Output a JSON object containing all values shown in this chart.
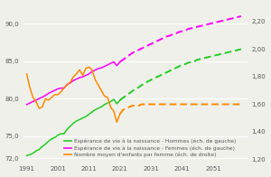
{
  "title": "",
  "left_ylim": [
    71.5,
    92.5
  ],
  "right_ylim": [
    1.18,
    2.32
  ],
  "left_yticks": [
    72.0,
    75.0,
    80.0,
    85.0,
    90.0
  ],
  "right_yticks": [
    1.2,
    1.4,
    1.6,
    1.8,
    2.0,
    2.2
  ],
  "left_ytick_labels": [
    "72,0",
    "75,0",
    "80,0",
    "85,0",
    "90,0"
  ],
  "right_ytick_labels": [
    "1,20",
    "1,40",
    "1,60",
    "1,80",
    "2,00",
    "2,20"
  ],
  "xlim": [
    1990,
    2062
  ],
  "xticks": [
    1991,
    2001,
    2011,
    2021,
    2031,
    2041,
    2051
  ],
  "xtick_labels": [
    "1991",
    "2001",
    "2011",
    "2021",
    "2031",
    "2041",
    "2051"
  ],
  "color_men": "#22cc22",
  "color_women": "#ff00ff",
  "color_children": "#ff8800",
  "men_life_solid": {
    "years": [
      1991,
      1992,
      1993,
      1994,
      1995,
      1996,
      1997,
      1998,
      1999,
      2000,
      2001,
      2002,
      2003,
      2004,
      2005,
      2006,
      2007,
      2008,
      2009,
      2010,
      2011,
      2012,
      2013,
      2014,
      2015,
      2016,
      2017,
      2018,
      2019,
      2020,
      2021
    ],
    "values": [
      72.4,
      72.5,
      72.7,
      73.0,
      73.2,
      73.6,
      73.9,
      74.3,
      74.6,
      74.8,
      75.1,
      75.3,
      75.3,
      75.9,
      76.3,
      76.7,
      77.0,
      77.2,
      77.4,
      77.6,
      77.9,
      78.2,
      78.5,
      78.7,
      78.9,
      79.2,
      79.4,
      79.6,
      79.9,
      79.3,
      79.8
    ]
  },
  "men_life_dashed": {
    "years": [
      2021,
      2022,
      2023,
      2024,
      2025,
      2026,
      2027,
      2028,
      2029,
      2030,
      2031,
      2032,
      2033,
      2034,
      2035,
      2036,
      2037,
      2038,
      2039,
      2040,
      2041,
      2042,
      2043,
      2044,
      2045,
      2046,
      2047,
      2048,
      2049,
      2050,
      2051,
      2052,
      2053,
      2054,
      2055,
      2056,
      2057,
      2058,
      2059,
      2060
    ],
    "values": [
      79.8,
      80.1,
      80.4,
      80.7,
      81.0,
      81.3,
      81.5,
      81.8,
      82.0,
      82.3,
      82.5,
      82.7,
      82.9,
      83.1,
      83.3,
      83.5,
      83.7,
      83.9,
      84.1,
      84.3,
      84.5,
      84.6,
      84.8,
      84.9,
      85.0,
      85.2,
      85.3,
      85.4,
      85.5,
      85.6,
      85.7,
      85.8,
      85.9,
      86.0,
      86.1,
      86.2,
      86.3,
      86.4,
      86.5,
      86.6
    ]
  },
  "women_life_solid": {
    "years": [
      1991,
      1992,
      1993,
      1994,
      1995,
      1996,
      1997,
      1998,
      1999,
      2000,
      2001,
      2002,
      2003,
      2004,
      2005,
      2006,
      2007,
      2008,
      2009,
      2010,
      2011,
      2012,
      2013,
      2014,
      2015,
      2016,
      2017,
      2018,
      2019,
      2020,
      2021
    ],
    "values": [
      79.2,
      79.4,
      79.6,
      79.8,
      80.0,
      80.2,
      80.4,
      80.7,
      80.9,
      81.1,
      81.3,
      81.4,
      81.4,
      81.9,
      82.1,
      82.4,
      82.6,
      82.8,
      82.9,
      83.1,
      83.3,
      83.6,
      83.8,
      84.0,
      84.1,
      84.3,
      84.5,
      84.7,
      84.9,
      84.4,
      84.9
    ]
  },
  "women_life_dashed": {
    "years": [
      2021,
      2022,
      2023,
      2024,
      2025,
      2026,
      2027,
      2028,
      2029,
      2030,
      2031,
      2032,
      2033,
      2034,
      2035,
      2036,
      2037,
      2038,
      2039,
      2040,
      2041,
      2042,
      2043,
      2044,
      2045,
      2046,
      2047,
      2048,
      2049,
      2050,
      2051,
      2052,
      2053,
      2054,
      2055,
      2056,
      2057,
      2058,
      2059,
      2060
    ],
    "values": [
      84.9,
      85.2,
      85.5,
      85.8,
      86.1,
      86.3,
      86.5,
      86.7,
      86.9,
      87.1,
      87.3,
      87.5,
      87.7,
      87.9,
      88.1,
      88.3,
      88.4,
      88.6,
      88.7,
      88.9,
      89.0,
      89.1,
      89.3,
      89.4,
      89.5,
      89.6,
      89.7,
      89.8,
      89.9,
      90.0,
      90.1,
      90.2,
      90.3,
      90.4,
      90.5,
      90.6,
      90.7,
      90.8,
      90.9,
      91.0
    ]
  },
  "children_solid": {
    "years": [
      1991,
      1992,
      1993,
      1994,
      1995,
      1996,
      1997,
      1998,
      1999,
      2000,
      2001,
      2002,
      2003,
      2004,
      2005,
      2006,
      2007,
      2008,
      2009,
      2010,
      2011,
      2012,
      2013,
      2014,
      2015,
      2016,
      2017,
      2018,
      2019,
      2020,
      2021
    ],
    "values": [
      1.82,
      1.72,
      1.65,
      1.62,
      1.57,
      1.58,
      1.64,
      1.63,
      1.65,
      1.67,
      1.67,
      1.69,
      1.72,
      1.74,
      1.76,
      1.8,
      1.82,
      1.85,
      1.81,
      1.86,
      1.87,
      1.85,
      1.78,
      1.74,
      1.7,
      1.66,
      1.65,
      1.58,
      1.55,
      1.47,
      1.53
    ]
  },
  "children_dashed": {
    "years": [
      2021,
      2022,
      2023,
      2024,
      2025,
      2026,
      2027,
      2028,
      2029,
      2030,
      2031,
      2032,
      2033,
      2034,
      2035,
      2036,
      2037,
      2038,
      2039,
      2040,
      2041,
      2042,
      2043,
      2044,
      2045,
      2046,
      2047,
      2048,
      2049,
      2050,
      2051,
      2052,
      2053,
      2054,
      2055,
      2056,
      2057,
      2058,
      2059,
      2060
    ],
    "values": [
      1.53,
      1.56,
      1.57,
      1.58,
      1.59,
      1.59,
      1.59,
      1.6,
      1.6,
      1.6,
      1.6,
      1.6,
      1.6,
      1.6,
      1.6,
      1.6,
      1.6,
      1.6,
      1.6,
      1.6,
      1.6,
      1.6,
      1.6,
      1.6,
      1.6,
      1.6,
      1.6,
      1.6,
      1.6,
      1.6,
      1.6,
      1.6,
      1.6,
      1.6,
      1.6,
      1.6,
      1.6,
      1.6,
      1.6,
      1.6
    ]
  },
  "legend_labels": [
    "Espérance de vie à la naissance - Hommes (éch. de gauche)",
    "Espérance de vie à la naissance - Femmes (éch. de gauche)",
    "Nombre moyen d'enfants par femme (éch. de droite)"
  ],
  "bg_color": "#f0f0eb",
  "grid_color": "#ffffff",
  "text_color": "#555555",
  "fontsize_ticks": 5.0,
  "fontsize_legend": 4.2,
  "lw_solid": 1.1,
  "lw_dashed": 1.4,
  "dash_pattern": [
    4,
    2
  ]
}
